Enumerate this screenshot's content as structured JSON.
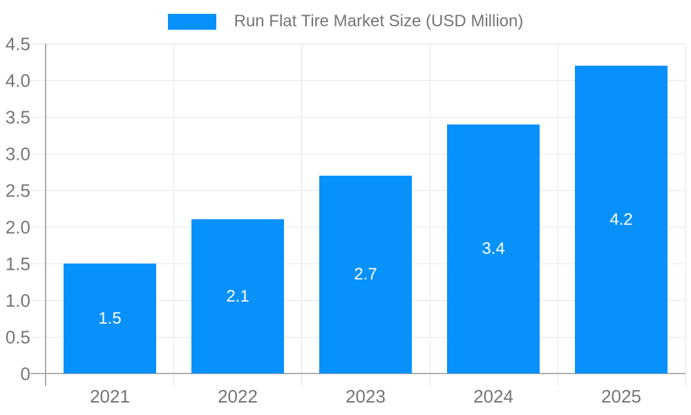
{
  "chart_data": {
    "type": "bar",
    "title": "Run Flat Tire Market Size (USD Million)",
    "categories": [
      "2021",
      "2022",
      "2023",
      "2024",
      "2025"
    ],
    "values": [
      1.5,
      2.1,
      2.7,
      3.4,
      4.2
    ],
    "bar_value_labels": [
      "1.5",
      "2.1",
      "2.7",
      "3.4",
      "4.2"
    ],
    "xlabel": "",
    "ylabel": "",
    "ylim": [
      0,
      4.5
    ],
    "ytick_step": 0.5,
    "ytick_labels": [
      "0",
      "0.5",
      "1.0",
      "1.5",
      "2.0",
      "2.5",
      "3.0",
      "3.5",
      "4.0",
      "4.5"
    ],
    "legend_position": "top-center",
    "grid": true,
    "colors": {
      "bar": "#0991FB",
      "gridline": "#e6e6e6",
      "axis_line": "#aaaaaa",
      "baseline": "#b0b0b0",
      "tick_label": "#757575",
      "legend_text": "#757575",
      "value_label": "#ffffff",
      "background": "#ffffff"
    }
  }
}
